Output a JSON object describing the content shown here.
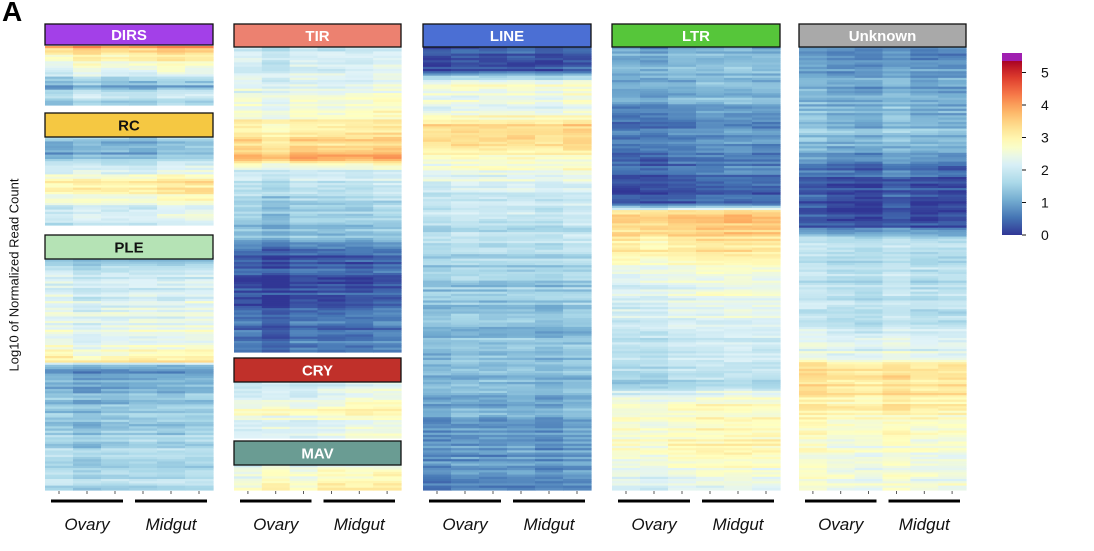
{
  "panel_label": "A",
  "colorbar": {
    "label": "Log10 of Normalized Read Count",
    "ticks": [
      "0",
      "1",
      "2",
      "3",
      "4",
      "5"
    ],
    "range": [
      0,
      5.6
    ],
    "colormap": "RdYlBu_r",
    "top_color": "#a01fb0"
  },
  "group_labels": [
    "Ovary",
    "Midgut"
  ],
  "colors": {
    "DIRS": "#a340e8",
    "RC": "#f5c842",
    "PLE": "#b5e3b5",
    "TIR": "#ec8170",
    "CRY": "#c0302a",
    "MAV": "#6a9c93",
    "LINE": "#4b6fd4",
    "LTR": "#56c63a",
    "Unknown": "#a9a9a9"
  },
  "chart_data": {
    "type": "heatmap",
    "columns_per_group": 3,
    "groups": [
      "Ovary",
      "Midgut"
    ],
    "value_unit": "Log10 of Normalized Read Count",
    "tracks": [
      {
        "families": [
          {
            "name": "DIRS",
            "profile": [
              [
                0,
                4.3
              ],
              [
                0.05,
                3.4
              ],
              [
                0.3,
                2.7
              ],
              [
                0.55,
                1.8
              ],
              [
                0.7,
                0.9
              ],
              [
                0.78,
                2.0
              ],
              [
                1,
                1.4
              ]
            ]
          },
          {
            "name": "RC",
            "profile": [
              [
                0,
                1.4
              ],
              [
                0.2,
                1.2
              ],
              [
                0.35,
                2.1
              ],
              [
                0.5,
                3.3
              ],
              [
                0.65,
                2.8
              ],
              [
                0.8,
                2.3
              ],
              [
                1,
                2.0
              ]
            ]
          },
          {
            "name": "PLE",
            "profile": [
              [
                0,
                0.6
              ],
              [
                0.04,
                1.9
              ],
              [
                0.2,
                2.3
              ],
              [
                0.38,
                2.6
              ],
              [
                0.45,
                3.3
              ],
              [
                0.47,
                0.8
              ],
              [
                0.6,
                1.3
              ],
              [
                0.8,
                1.6
              ],
              [
                1,
                1.8
              ]
            ]
          }
        ]
      },
      {
        "families": [
          {
            "name": "TIR",
            "profile": [
              [
                0,
                1.9
              ],
              [
                0.15,
                2.4
              ],
              [
                0.25,
                3.0
              ],
              [
                0.33,
                3.5
              ],
              [
                0.36,
                3.8
              ],
              [
                0.4,
                2.0
              ],
              [
                0.55,
                1.4
              ],
              [
                0.62,
                1.2
              ],
              [
                0.66,
                0.3
              ],
              [
                0.78,
                0.2
              ],
              [
                0.85,
                0.3
              ],
              [
                1,
                0.6
              ]
            ]
          },
          {
            "name": "CRY",
            "profile": [
              [
                0,
                2.2
              ],
              [
                0.3,
                2.5
              ],
              [
                0.5,
                2.9
              ],
              [
                0.7,
                2.4
              ],
              [
                1,
                2.2
              ]
            ]
          },
          {
            "name": "MAV",
            "profile": [
              [
                0,
                2.2
              ],
              [
                0.5,
                2.9
              ],
              [
                1,
                3.2
              ]
            ]
          }
        ]
      },
      {
        "families": [
          {
            "name": "LINE",
            "profile": [
              [
                0,
                0.3
              ],
              [
                0.05,
                0.2
              ],
              [
                0.08,
                2.8
              ],
              [
                0.14,
                2.3
              ],
              [
                0.17,
                3.5
              ],
              [
                0.22,
                3.2
              ],
              [
                0.25,
                2.9
              ],
              [
                0.3,
                2.3
              ],
              [
                0.4,
                1.9
              ],
              [
                0.5,
                1.6
              ],
              [
                0.6,
                1.3
              ],
              [
                0.75,
                1.2
              ],
              [
                0.85,
                1.0
              ],
              [
                1,
                0.8
              ]
            ]
          }
        ]
      },
      {
        "families": [
          {
            "name": "LTR",
            "profile": [
              [
                0,
                1.0
              ],
              [
                0.1,
                1.2
              ],
              [
                0.15,
                0.7
              ],
              [
                0.28,
                0.4
              ],
              [
                0.35,
                0.1
              ],
              [
                0.37,
                3.6
              ],
              [
                0.45,
                3.2
              ],
              [
                0.5,
                2.6
              ],
              [
                0.6,
                2.2
              ],
              [
                0.75,
                1.6
              ],
              [
                0.8,
                2.6
              ],
              [
                0.9,
                2.9
              ],
              [
                1,
                2.1
              ]
            ]
          }
        ]
      },
      {
        "families": [
          {
            "name": "Unknown",
            "profile": [
              [
                0,
                0.8
              ],
              [
                0.1,
                1.1
              ],
              [
                0.2,
                1.4
              ],
              [
                0.3,
                0.3
              ],
              [
                0.4,
                0.2
              ],
              [
                0.43,
                1.8
              ],
              [
                0.6,
                1.9
              ],
              [
                0.7,
                2.5
              ],
              [
                0.72,
                3.5
              ],
              [
                0.78,
                3.3
              ],
              [
                0.85,
                2.8
              ],
              [
                1,
                2.6
              ]
            ]
          }
        ]
      }
    ]
  }
}
